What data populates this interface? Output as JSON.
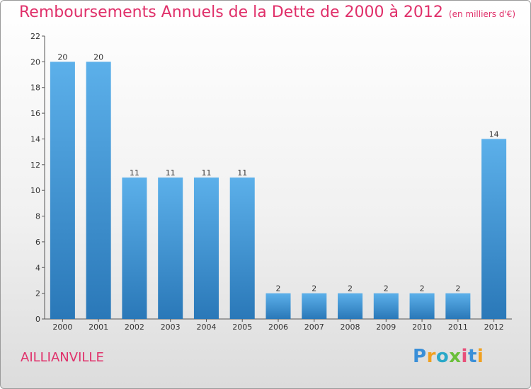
{
  "header": {
    "title": "Remboursements Annuels de la Dette de 2000 à 2012",
    "unit": "(en milliers d'€)"
  },
  "footer": {
    "commune": "AILLIANVILLE",
    "logo_text": "Proxiti"
  },
  "colors": {
    "accent": "#e0306a",
    "bar_top": "#5cb0ea",
    "bar_bottom": "#2a78b8"
  },
  "chart_data": {
    "type": "bar",
    "categories": [
      "2000",
      "2001",
      "2002",
      "2003",
      "2004",
      "2005",
      "2006",
      "2007",
      "2008",
      "2009",
      "2010",
      "2011",
      "2012"
    ],
    "values": [
      20,
      20,
      11,
      11,
      11,
      11,
      2,
      2,
      2,
      2,
      2,
      2,
      14
    ],
    "data_labels": [
      "20",
      "20",
      "11",
      "11",
      "11",
      "11",
      "2",
      "2",
      "2",
      "2",
      "2",
      "2",
      "14"
    ],
    "ylim": [
      0,
      22
    ],
    "yticks": [
      "0",
      "2",
      "4",
      "6",
      "8",
      "10",
      "12",
      "14",
      "16",
      "18",
      "20",
      "22"
    ],
    "grid": false,
    "legend": "none"
  }
}
